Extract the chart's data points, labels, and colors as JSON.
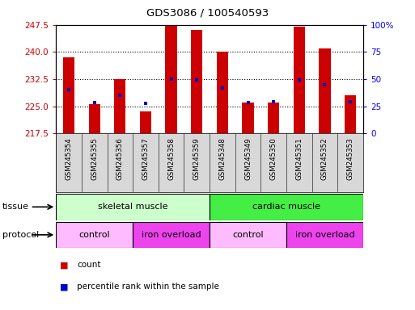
{
  "title": "GDS3086 / 100540593",
  "samples": [
    "GSM245354",
    "GSM245355",
    "GSM245356",
    "GSM245357",
    "GSM245358",
    "GSM245359",
    "GSM245348",
    "GSM245349",
    "GSM245350",
    "GSM245351",
    "GSM245352",
    "GSM245353"
  ],
  "bar_values": [
    238.5,
    225.5,
    232.5,
    223.5,
    247.5,
    246.0,
    240.0,
    226.0,
    226.0,
    247.0,
    241.0,
    228.0
  ],
  "blue_values": [
    229.5,
    226.0,
    228.0,
    225.8,
    232.5,
    232.3,
    230.0,
    226.0,
    226.2,
    232.3,
    231.0,
    226.2
  ],
  "ymin": 217.5,
  "ymax": 247.5,
  "yticks_left": [
    217.5,
    225.0,
    232.5,
    240.0,
    247.5
  ],
  "yticks_right_pct": [
    0,
    25,
    50,
    75,
    100
  ],
  "bar_color": "#cc0000",
  "blue_color": "#0000cc",
  "tissue_groups": [
    {
      "label": "skeletal muscle",
      "start": 0,
      "end": 5,
      "color": "#ccffcc"
    },
    {
      "label": "cardiac muscle",
      "start": 6,
      "end": 11,
      "color": "#44ee44"
    }
  ],
  "protocol_groups": [
    {
      "label": "control",
      "start": 0,
      "end": 2,
      "color": "#ffbbff"
    },
    {
      "label": "iron overload",
      "start": 3,
      "end": 5,
      "color": "#ee44ee"
    },
    {
      "label": "control",
      "start": 6,
      "end": 8,
      "color": "#ffbbff"
    },
    {
      "label": "iron overload",
      "start": 9,
      "end": 11,
      "color": "#ee44ee"
    }
  ],
  "sample_bg_color": "#d8d8d8",
  "bar_width": 0.45
}
